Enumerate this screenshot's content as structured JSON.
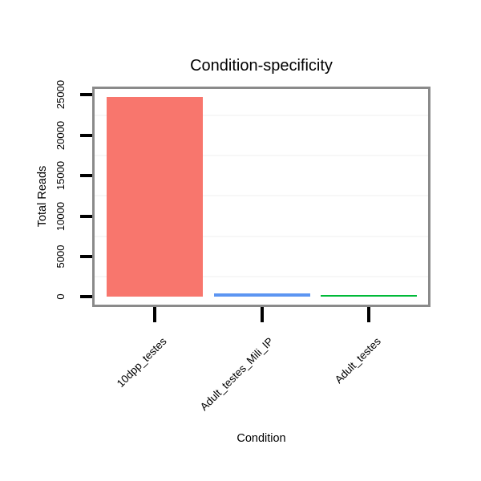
{
  "chart_data": {
    "type": "bar",
    "title": "Condition-specificity",
    "xlabel": "Condition",
    "ylabel": "Total Reads",
    "categories": [
      "10dpp_testes",
      "Adult_testes_Mili_IP",
      "Adult_testes"
    ],
    "values": [
      24700,
      430,
      180
    ],
    "bar_colors": [
      "#F8766D",
      "#5C95F2",
      "#00BA38"
    ],
    "yticks": [
      0,
      5000,
      10000,
      15000,
      20000,
      25000
    ],
    "minor_gridlines": [
      2500,
      7500,
      12500,
      17500,
      22500
    ],
    "ylim": [
      -960,
      26000
    ],
    "grid": "minor-horizontal-only",
    "legend": "none"
  },
  "colors": {
    "background": "#FFFFFF",
    "panel_background": "#FFFFFF",
    "panel_border": "#8A8A8A",
    "minor_grid": "#F7F7F7",
    "tick": "#000000",
    "text": "#000000"
  }
}
